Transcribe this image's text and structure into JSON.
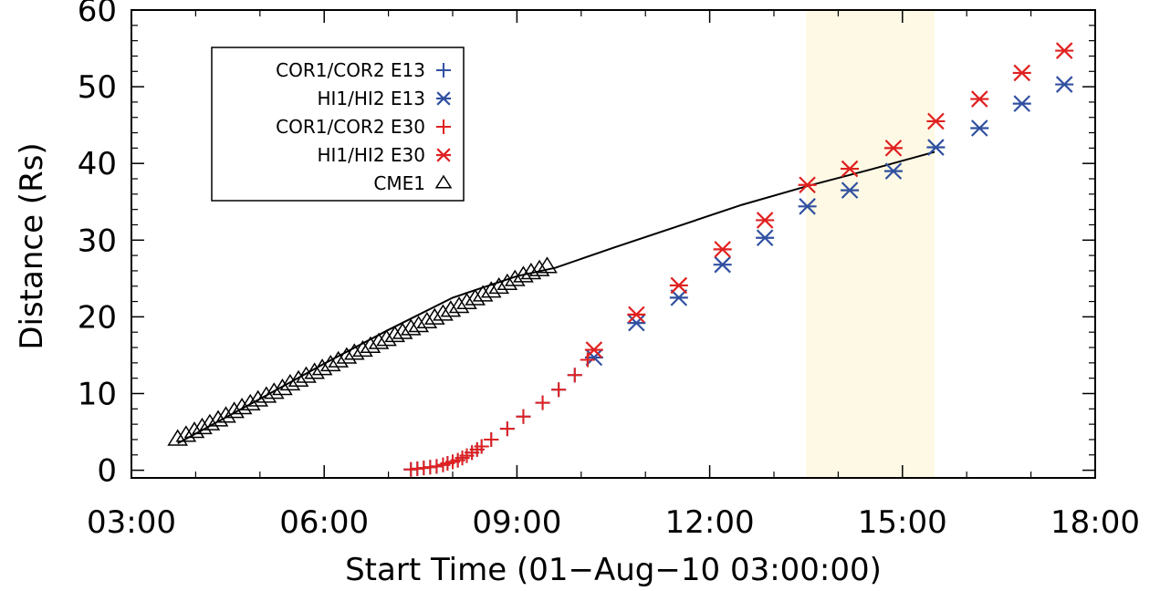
{
  "chart_data": {
    "type": "scatter",
    "xlabel": "Start Time (01−Aug−10 03:00:00)",
    "ylabel": "Distance (Rs)",
    "xlim": [
      3,
      18
    ],
    "ylim": [
      -1,
      60
    ],
    "x_ticks": [
      {
        "value": 3,
        "label": "03:00"
      },
      {
        "value": 6,
        "label": "06:00"
      },
      {
        "value": 9,
        "label": "09:00"
      },
      {
        "value": 12,
        "label": "12:00"
      },
      {
        "value": 15,
        "label": "15:00"
      },
      {
        "value": 18,
        "label": "18:00"
      }
    ],
    "y_ticks": [
      {
        "value": 0,
        "label": "0"
      },
      {
        "value": 10,
        "label": "10"
      },
      {
        "value": 20,
        "label": "20"
      },
      {
        "value": 30,
        "label": "30"
      },
      {
        "value": 40,
        "label": "40"
      },
      {
        "value": 50,
        "label": "50"
      },
      {
        "value": 60,
        "label": "60"
      }
    ],
    "shaded_region": {
      "x": [
        13.5,
        15.5
      ],
      "color": "#fdf9e4"
    },
    "legend_position": "top-left",
    "series": [
      {
        "name": "COR1/COR2 E13",
        "marker": "plus",
        "color": "#3050a0",
        "x": [
          7.35,
          7.45,
          7.55,
          7.65,
          7.75,
          7.85,
          7.92,
          8.0,
          8.08,
          8.15,
          8.22,
          8.3,
          8.38,
          8.45,
          8.6,
          8.85,
          9.1,
          9.4,
          9.65,
          9.9,
          10.1
        ],
        "y": [
          0.1,
          0.2,
          0.3,
          0.4,
          0.5,
          0.7,
          0.9,
          1.1,
          1.3,
          1.6,
          1.9,
          2.3,
          2.7,
          3.1,
          4.0,
          5.4,
          7.0,
          8.8,
          10.5,
          12.4,
          14.4
        ]
      },
      {
        "name": "HI1/HI2 E13",
        "marker": "asterisk",
        "color": "#3050a0",
        "x": [
          10.2,
          10.86,
          11.52,
          12.2,
          12.86,
          13.52,
          14.18,
          14.86,
          15.52,
          16.2,
          16.86,
          17.52
        ],
        "y": [
          14.7,
          19.2,
          22.5,
          26.8,
          30.3,
          34.4,
          36.5,
          39.0,
          42.1,
          44.6,
          47.8,
          50.3
        ]
      },
      {
        "name": "COR1/COR2 E30",
        "marker": "plus",
        "color": "#e02020",
        "x": [
          7.35,
          7.45,
          7.55,
          7.65,
          7.75,
          7.85,
          7.92,
          8.0,
          8.08,
          8.15,
          8.22,
          8.3,
          8.38,
          8.45,
          8.6,
          8.85,
          9.1,
          9.4,
          9.65,
          9.9,
          10.1
        ],
        "y": [
          0.1,
          0.2,
          0.3,
          0.4,
          0.5,
          0.7,
          0.9,
          1.1,
          1.3,
          1.6,
          1.9,
          2.3,
          2.7,
          3.1,
          4.0,
          5.4,
          7.0,
          8.8,
          10.5,
          12.4,
          14.4
        ]
      },
      {
        "name": "HI1/HI2 E30",
        "marker": "asterisk",
        "color": "#e02020",
        "x": [
          10.2,
          10.86,
          11.52,
          12.2,
          12.86,
          13.52,
          14.18,
          14.86,
          15.52,
          16.2,
          16.86,
          17.52
        ],
        "y": [
          15.7,
          20.3,
          24.1,
          28.8,
          32.6,
          37.2,
          39.3,
          42.0,
          45.5,
          48.4,
          51.8,
          54.7
        ]
      },
      {
        "name": "CME1",
        "marker": "triangle",
        "color": "#000000",
        "x": [
          3.72,
          3.85,
          3.98,
          4.1,
          4.22,
          4.35,
          4.47,
          4.6,
          4.72,
          4.85,
          4.97,
          5.1,
          5.22,
          5.35,
          5.47,
          5.6,
          5.72,
          5.85,
          5.97,
          6.1,
          6.22,
          6.35,
          6.47,
          6.6,
          6.72,
          6.85,
          6.97,
          7.1,
          7.22,
          7.35,
          7.47,
          7.6,
          7.72,
          7.85,
          7.97,
          8.1,
          8.22,
          8.35,
          8.47,
          8.6,
          8.72,
          8.85,
          8.97,
          9.1,
          9.22,
          9.35,
          9.47
        ],
        "y": [
          4.0,
          4.5,
          5.0,
          5.5,
          6.0,
          6.5,
          7.0,
          7.6,
          8.1,
          8.6,
          9.1,
          9.6,
          10.1,
          10.6,
          11.2,
          11.7,
          12.2,
          12.7,
          13.2,
          13.7,
          14.2,
          14.7,
          15.2,
          15.6,
          16.1,
          16.6,
          17.0,
          17.5,
          17.9,
          18.4,
          18.8,
          19.3,
          19.8,
          20.3,
          20.8,
          21.3,
          21.8,
          22.3,
          22.8,
          23.3,
          23.8,
          24.3,
          24.8,
          25.3,
          25.7,
          26.1,
          26.5
        ]
      }
    ],
    "fit_line": {
      "color": "#000000",
      "x": [
        3.72,
        5.0,
        6.0,
        7.0,
        8.0,
        9.0,
        9.6,
        10.5,
        11.5,
        12.5,
        13.5,
        14.5,
        15.5
      ],
      "y": [
        3.5,
        9.3,
        13.9,
        18.3,
        22.5,
        25.3,
        26.4,
        29.0,
        31.8,
        34.6,
        37.0,
        39.2,
        41.5
      ]
    }
  }
}
